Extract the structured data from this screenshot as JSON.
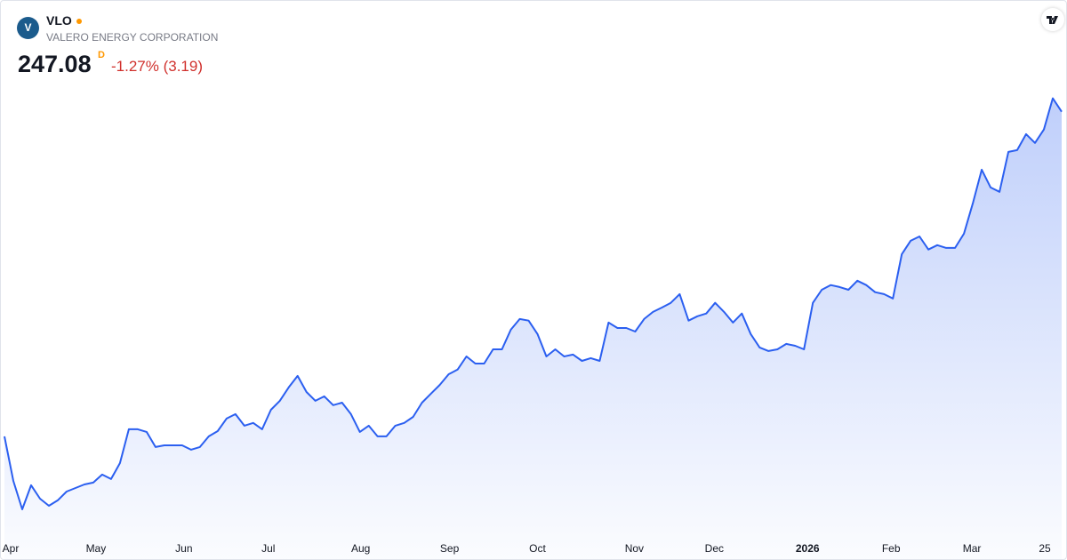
{
  "chart_data": {
    "type": "area",
    "symbol": "VLO",
    "title": "VALERO ENERGY CORPORATION",
    "price": "247.08",
    "interval": "D",
    "change": "-1.27% (3.19)",
    "color": "#2b5ff0",
    "values": [
      128.4,
      112.1,
      101.7,
      110.5,
      105.6,
      103.0,
      105.0,
      108.2,
      109.5,
      110.8,
      111.5,
      114.4,
      112.8,
      118.6,
      131.0,
      131.0,
      130.0,
      124.5,
      125.1,
      125.1,
      125.1,
      123.5,
      124.5,
      128.4,
      130.3,
      134.9,
      136.5,
      132.3,
      133.3,
      131.0,
      138.1,
      141.4,
      146.3,
      150.5,
      144.6,
      141.4,
      143.0,
      139.8,
      140.7,
      136.5,
      130.0,
      132.3,
      128.4,
      128.4,
      132.3,
      133.3,
      135.5,
      140.7,
      144.0,
      147.2,
      151.1,
      152.8,
      157.6,
      155.0,
      155.0,
      160.2,
      160.2,
      167.4,
      171.3,
      170.7,
      165.8,
      157.6,
      160.2,
      157.6,
      158.3,
      156.0,
      157.0,
      156.0,
      170.0,
      168.0,
      168.0,
      166.7,
      171.3,
      173.9,
      175.5,
      177.2,
      180.4,
      170.7,
      172.3,
      173.3,
      177.2,
      173.9,
      170.0,
      173.3,
      165.8,
      160.9,
      159.6,
      160.2,
      162.2,
      161.5,
      160.2,
      177.2,
      182.0,
      183.7,
      183.0,
      182.0,
      185.3,
      183.7,
      181.1,
      180.4,
      178.8,
      195.0,
      199.9,
      201.5,
      196.7,
      198.3,
      197.3,
      197.3,
      202.5,
      213.6,
      225.9,
      219.4,
      217.8,
      232.4,
      233.1,
      238.9,
      235.7,
      240.6,
      252.0,
      247.08
    ],
    "xlim": [
      0,
      119
    ],
    "xticks": [
      {
        "value": 0.7,
        "label": "Apr"
      },
      {
        "value": 10.3,
        "label": "May"
      },
      {
        "value": 20.2,
        "label": "Jun"
      },
      {
        "value": 29.7,
        "label": "Jul"
      },
      {
        "value": 40.1,
        "label": "Aug"
      },
      {
        "value": 50.1,
        "label": "Sep"
      },
      {
        "value": 60,
        "label": "Oct"
      },
      {
        "value": 70.9,
        "label": "Nov"
      },
      {
        "value": 79.9,
        "label": "Dec"
      },
      {
        "value": 90.4,
        "label": "2026"
      },
      {
        "value": 99.8,
        "label": "Feb"
      },
      {
        "value": 108.9,
        "label": "Mar"
      },
      {
        "value": 117.1,
        "label": "25"
      }
    ],
    "ylim": [
      90,
      260
    ]
  }
}
